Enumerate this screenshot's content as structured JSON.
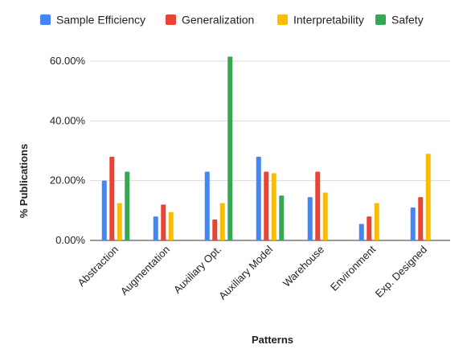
{
  "chart_data": {
    "type": "bar",
    "title": "",
    "xlabel": "Patterns",
    "ylabel": "% Publications",
    "ylim": [
      0,
      0.6
    ],
    "yticks": [
      "0.00%",
      "20.00%",
      "40.00%",
      "60.00%"
    ],
    "grid": "horizontal",
    "legend_position": "top",
    "categories": [
      "Abstraction",
      "Augmentation",
      "Auxiliary Opt.",
      "Auxiliary Model",
      "Warehouse",
      "Environment",
      "Exp. Designed"
    ],
    "series": [
      {
        "name": "Sample Efficiency",
        "color": "#4285F4",
        "values": [
          0.2,
          0.08,
          0.23,
          0.28,
          0.145,
          0.055,
          0.11
        ]
      },
      {
        "name": "Generalization",
        "color": "#EA4335",
        "values": [
          0.28,
          0.12,
          0.07,
          0.23,
          0.23,
          0.08,
          0.145
        ]
      },
      {
        "name": "Interpretability",
        "color": "#FBBC04",
        "values": [
          0.125,
          0.095,
          0.125,
          0.225,
          0.16,
          0.125,
          0.29
        ]
      },
      {
        "name": "Safety",
        "color": "#34A853",
        "values": [
          0.23,
          0,
          0.615,
          0.15,
          0,
          0,
          0
        ]
      }
    ]
  }
}
